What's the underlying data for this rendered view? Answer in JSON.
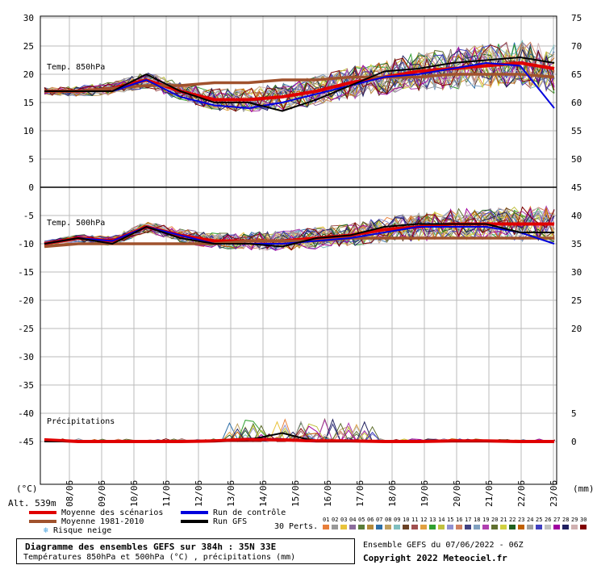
{
  "header": {
    "left_unit": "(°C)",
    "right_unit": "(mm)",
    "altitude": "Alt. 539m"
  },
  "panels": {
    "t850_label": "Temp. 850hPa",
    "t500_label": "Temp. 500hPa",
    "precip_label": "Précipitations"
  },
  "legend": {
    "mean": "Moyenne des scénarios",
    "clim": "Moyenne 1981-2010",
    "snow": "Risque neige",
    "control": "Run de contrôle",
    "gfs": "Run GFS",
    "perts_label": "30 Perts.",
    "colors": {
      "mean": "#e00000",
      "clim": "#a0522d",
      "control": "#0000dd",
      "gfs": "#000000",
      "snow": "#4aa3df"
    }
  },
  "perts": {
    "numbers": [
      "01",
      "02",
      "03",
      "04",
      "05",
      "06",
      "07",
      "08",
      "09",
      "10",
      "11",
      "12",
      "13",
      "14",
      "15",
      "16",
      "17",
      "18",
      "19",
      "20",
      "21",
      "22",
      "23",
      "24",
      "25",
      "26",
      "27",
      "28",
      "29",
      "30"
    ],
    "colors": [
      "#e87f3b",
      "#999999",
      "#e8c33b",
      "#8b6d9c",
      "#5a7d3a",
      "#b58a3a",
      "#2e6fa8",
      "#c0a060",
      "#7fbfbf",
      "#6b4226",
      "#a05050",
      "#e0a040",
      "#30a030",
      "#c0c040",
      "#9090d0",
      "#d08060",
      "#404080",
      "#80a0c0",
      "#b040b0",
      "#607030",
      "#d0d040",
      "#206020",
      "#c06000",
      "#a0a0a0",
      "#4040c0",
      "#c0c0c0",
      "#a000a0",
      "#202060",
      "#d0b0b0",
      "#800000"
    ]
  },
  "info": {
    "title": "Diagramme des ensembles GEFS sur 384h : 35N 33E",
    "subtitle": "Températures 850hPa et 500hPa (°C) , précipitations (mm)",
    "run": "Ensemble GEFS du 07/06/2022 - 06Z",
    "copyright": "Copyright 2022 Meteociel.fr"
  },
  "chart_data": [
    {
      "type": "line",
      "title": "Temp. 850hPa",
      "x": [
        "08/06",
        "09/06",
        "10/06",
        "11/06",
        "12/06",
        "13/06",
        "14/06",
        "15/06",
        "16/06",
        "17/06",
        "18/06",
        "19/06",
        "20/06",
        "21/06",
        "22/06",
        "23/06"
      ],
      "left_ticks": [
        30,
        25,
        20,
        15,
        10,
        5,
        0
      ],
      "right_ticks": [
        75,
        70,
        65,
        60,
        55,
        50
      ],
      "ylim": [
        0,
        30
      ],
      "series": [
        {
          "name": "Moyenne des scénarios",
          "values": [
            17,
            17,
            17.5,
            19,
            17,
            15.5,
            15.5,
            16,
            17,
            18.5,
            19.5,
            20.5,
            21,
            21.5,
            22,
            21
          ]
        },
        {
          "name": "Moyenne 1981-2010",
          "values": [
            17,
            17,
            17.5,
            18,
            18,
            18.5,
            18.5,
            19,
            19,
            19.5,
            19.5,
            19.5,
            20,
            20,
            20,
            19.5
          ]
        },
        {
          "name": "Run de contrôle",
          "values": [
            17,
            17,
            17,
            19,
            16,
            14.5,
            14,
            15,
            16.5,
            18,
            19.5,
            20,
            21,
            22,
            21.5,
            14
          ]
        },
        {
          "name": "Run GFS",
          "values": [
            17,
            17,
            17,
            20,
            17,
            15,
            15,
            13.5,
            15.5,
            18,
            20.5,
            21,
            22,
            22.5,
            23,
            22
          ]
        }
      ]
    },
    {
      "type": "line",
      "title": "Temp. 500hPa",
      "x": [
        "08/06",
        "09/06",
        "10/06",
        "11/06",
        "12/06",
        "13/06",
        "14/06",
        "15/06",
        "16/06",
        "17/06",
        "18/06",
        "19/06",
        "20/06",
        "21/06",
        "22/06",
        "23/06"
      ],
      "left_ticks": [
        0,
        -5,
        -10,
        -15,
        -20,
        -25,
        -30,
        -35,
        -40,
        -45
      ],
      "right_ticks": [
        45,
        40,
        35,
        30,
        25,
        20
      ],
      "ylim": [
        -50,
        0
      ],
      "series": [
        {
          "name": "Moyenne des scénarios",
          "values": [
            -10,
            -9,
            -9.5,
            -7,
            -8.5,
            -9.5,
            -9.5,
            -9.5,
            -9,
            -8.5,
            -7.5,
            -7,
            -6.5,
            -6.5,
            -6.5,
            -6.5
          ]
        },
        {
          "name": "Moyenne 1981-2010",
          "values": [
            -10.5,
            -10,
            -10,
            -10,
            -10,
            -10,
            -9.5,
            -9.5,
            -9.5,
            -9,
            -9,
            -9,
            -9,
            -9,
            -9,
            -9
          ]
        },
        {
          "name": "Run de contrôle",
          "values": [
            -10,
            -9,
            -9.5,
            -7,
            -8.5,
            -10,
            -10,
            -10,
            -9.5,
            -9,
            -8,
            -7,
            -7,
            -7,
            -8,
            -10
          ]
        },
        {
          "name": "Run GFS",
          "values": [
            -10,
            -9,
            -10,
            -7,
            -9,
            -10,
            -10,
            -10.5,
            -9,
            -8.5,
            -7,
            -6.5,
            -6.5,
            -6.5,
            -8,
            -8
          ]
        }
      ]
    },
    {
      "type": "line",
      "title": "Précipitations",
      "x": [
        "08/06",
        "09/06",
        "10/06",
        "11/06",
        "12/06",
        "13/06",
        "14/06",
        "15/06",
        "16/06",
        "17/06",
        "18/06",
        "19/06",
        "20/06",
        "21/06",
        "22/06",
        "23/06"
      ],
      "right_ticks": [
        5,
        0
      ],
      "ylim": [
        0,
        5
      ],
      "series": [
        {
          "name": "Moyenne des scénarios",
          "values": [
            0.3,
            0,
            0,
            0,
            0,
            0.1,
            0.4,
            0.3,
            0.1,
            0.1,
            0,
            0,
            0.1,
            0.1,
            0,
            0
          ]
        },
        {
          "name": "Run de contrôle",
          "values": [
            0.2,
            0,
            0,
            0,
            0,
            0,
            0.5,
            0.4,
            0,
            0.2,
            0,
            0,
            0,
            0,
            0,
            0
          ]
        },
        {
          "name": "Run GFS",
          "values": [
            0,
            0,
            0,
            0,
            0,
            0,
            0.3,
            1.5,
            0,
            0,
            0,
            0,
            0,
            0,
            0,
            0
          ]
        }
      ]
    }
  ]
}
